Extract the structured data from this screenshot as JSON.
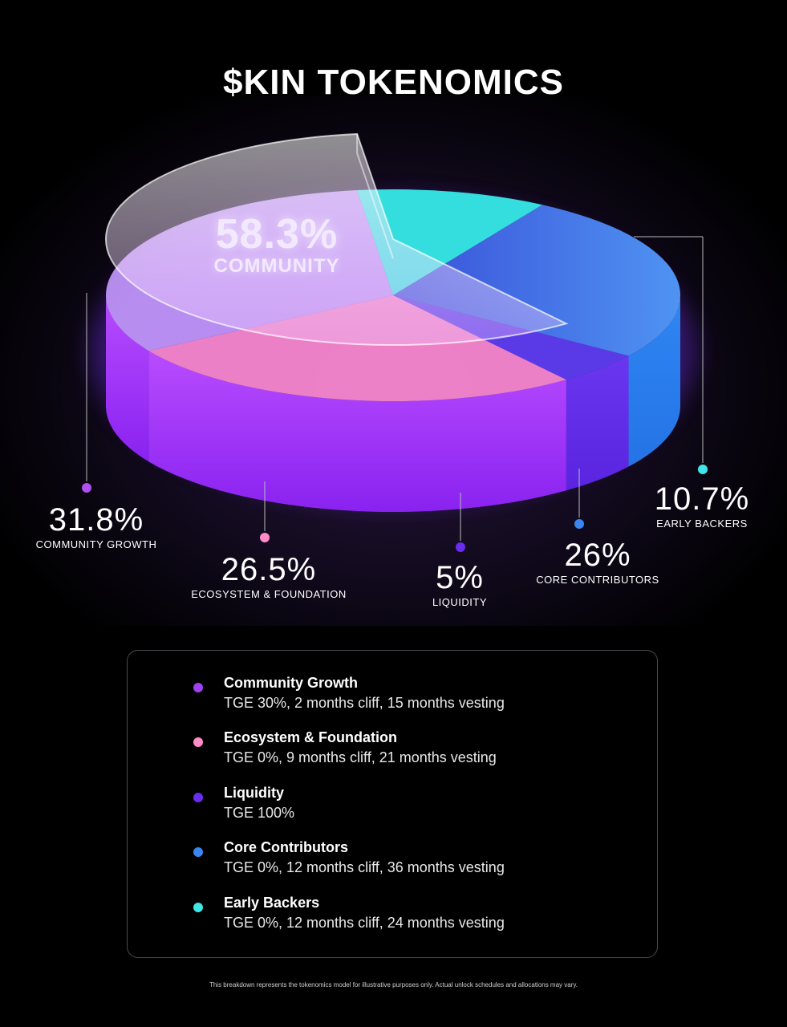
{
  "title": "$KIN TOKENOMICS",
  "highlight": {
    "pct": "58.3%",
    "name": "COMMUNITY"
  },
  "chart_data": {
    "type": "pie",
    "title": "$KIN TOKENOMICS",
    "slices": [
      {
        "name": "COMMUNITY GROWTH",
        "value": 31.8,
        "label": "31.8%",
        "color": "#9b30ff"
      },
      {
        "name": "ECOSYSTEM & FOUNDATION",
        "value": 26.5,
        "label": "26.5%",
        "color": "#ff7fd0"
      },
      {
        "name": "LIQUIDITY",
        "value": 5,
        "label": "5%",
        "color": "#6a2cf0"
      },
      {
        "name": "CORE CONTRIBUTORS",
        "value": 26,
        "label": "26%",
        "color": "#2f7ff0"
      },
      {
        "name": "EARLY BACKERS",
        "value": 10.7,
        "label": "10.7%",
        "color": "#3fe6e6"
      }
    ],
    "group": {
      "name": "COMMUNITY",
      "value": 58.3
    }
  },
  "legend": [
    {
      "name": "Community Growth",
      "desc": "TGE 30%, 2 months cliff, 15 months vesting",
      "color": "#a040f0"
    },
    {
      "name": "Ecosystem & Foundation",
      "desc": "TGE 0%, 9 months cliff, 21 months vesting",
      "color": "#ff8cc8"
    },
    {
      "name": "Liquidity",
      "desc": "TGE 100%",
      "color": "#6a2cf0"
    },
    {
      "name": "Core Contributors",
      "desc": "TGE 0%, 12 months cliff, 36 months vesting",
      "color": "#3a86f0"
    },
    {
      "name": "Early Backers",
      "desc": "TGE 0%, 12 months cliff, 24 months vesting",
      "color": "#3fe6e6"
    }
  ],
  "footnote": "This breakdown represents the tokenomics model for illustrative purposes only. Actual unlock schedules and allocations may vary."
}
